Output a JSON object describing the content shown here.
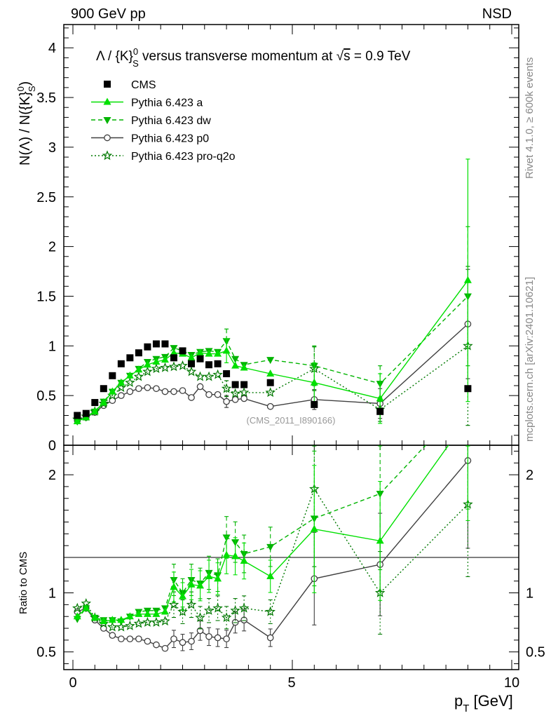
{
  "header": {
    "left": "900 GeV pp",
    "right": "NSD"
  },
  "side": {
    "rivet": "Rivet 4.1.0, ≥ 600k events",
    "mcplots": "mcplots.cern.ch [arXiv:2401.10621]"
  },
  "chart_data": {
    "type": "line",
    "title": "Λ / {K}S0 versus transverse momentum at √s = 0.9 TeV",
    "title_parts": {
      "t1": "Λ / {K}",
      "sub": "S",
      "sup": "0",
      "t2": " versus transverse momentum at ",
      "sqrt": "√",
      "s": "s",
      "t3": " = 0.9 TeV"
    },
    "analysis_id": "(CMS_2011_I890166)",
    "ylabel": "N(Λ)  /  N({K}S0)",
    "ylabel_parts": {
      "main": "N(Λ)  /  N({K}",
      "sub": "S",
      "sup": "0",
      "close": ")"
    },
    "xlabel": "pT [GeV]",
    "xlabel_parts": {
      "p": "p",
      "sub": "T",
      "unit": " [GeV]"
    },
    "ratio_ylabel": "Ratio to CMS",
    "xlim": [
      -0.3,
      10.2
    ],
    "ylim": [
      0,
      4.2
    ],
    "ratio_ylim": [
      0.35,
      2.25
    ],
    "xticks": [
      "0",
      "5",
      "10"
    ],
    "yticks": [
      "0",
      "0.5",
      "1",
      "1.5",
      "2",
      "2.5",
      "3",
      "3.5",
      "4"
    ],
    "ratio_yticks": [
      "0.5",
      "1",
      "2"
    ],
    "legend": [
      "CMS",
      "Pythia 6.423 a",
      "Pythia 6.423 dw",
      "Pythia 6.423 p0",
      "Pythia 6.423 pro-q2o"
    ],
    "legend_position": "top-left",
    "colors": {
      "cms": "#000000",
      "a": "#00e000",
      "dw": "#00b400",
      "p0": "#404040",
      "q2o": "#007800"
    },
    "series": [
      {
        "name": "CMS",
        "style": "square",
        "x": [
          0.1,
          0.3,
          0.5,
          0.7,
          0.9,
          1.1,
          1.3,
          1.5,
          1.7,
          1.9,
          2.1,
          2.3,
          2.5,
          2.7,
          2.9,
          3.1,
          3.3,
          3.5,
          3.7,
          3.9,
          4.5,
          5.5,
          7.0,
          9.0
        ],
        "values": [
          0.3,
          0.32,
          0.43,
          0.57,
          0.7,
          0.82,
          0.88,
          0.93,
          0.99,
          1.02,
          1.02,
          0.88,
          0.95,
          0.82,
          0.87,
          0.81,
          0.82,
          0.72,
          0.61,
          0.61,
          0.63,
          0.41,
          0.34,
          0.57
        ]
      },
      {
        "name": "Pythia 6.423 a",
        "style": "triangle-up",
        "line": "solid",
        "x": [
          0.1,
          0.3,
          0.5,
          0.7,
          0.9,
          1.1,
          1.3,
          1.5,
          1.7,
          1.9,
          2.1,
          2.3,
          2.5,
          2.7,
          2.9,
          3.1,
          3.3,
          3.5,
          3.7,
          3.9,
          4.5,
          5.5,
          7.0,
          9.0
        ],
        "values": [
          0.24,
          0.28,
          0.34,
          0.43,
          0.54,
          0.63,
          0.7,
          0.76,
          0.81,
          0.84,
          0.86,
          0.93,
          0.92,
          0.88,
          0.93,
          0.92,
          0.92,
          0.95,
          0.8,
          0.78,
          0.72,
          0.63,
          0.47,
          1.66
        ]
      },
      {
        "name": "Pythia 6.423 dw",
        "style": "triangle-down",
        "line": "dashed",
        "x": [
          0.1,
          0.3,
          0.5,
          0.7,
          0.9,
          1.1,
          1.3,
          1.5,
          1.7,
          1.9,
          2.1,
          2.3,
          2.5,
          2.7,
          2.9,
          3.1,
          3.3,
          3.5,
          3.7,
          3.9,
          4.5,
          5.5,
          7.0,
          9.0
        ],
        "values": [
          0.24,
          0.28,
          0.34,
          0.44,
          0.54,
          0.63,
          0.7,
          0.77,
          0.84,
          0.87,
          0.89,
          0.98,
          0.95,
          0.91,
          0.94,
          0.95,
          0.94,
          1.05,
          0.87,
          0.81,
          0.86,
          0.8,
          0.62,
          1.5
        ]
      },
      {
        "name": "Pythia 6.423 p0",
        "style": "circle-open",
        "line": "solid",
        "x": [
          0.1,
          0.3,
          0.5,
          0.7,
          0.9,
          1.1,
          1.3,
          1.5,
          1.7,
          1.9,
          2.1,
          2.3,
          2.5,
          2.7,
          2.9,
          3.1,
          3.3,
          3.5,
          3.7,
          3.9,
          4.5,
          5.5,
          7.0,
          9.0
        ],
        "values": [
          0.25,
          0.28,
          0.33,
          0.4,
          0.45,
          0.5,
          0.54,
          0.57,
          0.58,
          0.57,
          0.54,
          0.54,
          0.55,
          0.48,
          0.59,
          0.51,
          0.51,
          0.44,
          0.46,
          0.47,
          0.39,
          0.46,
          0.42,
          1.22
        ]
      },
      {
        "name": "Pythia 6.423 pro-q2o",
        "style": "star-open",
        "line": "dotted",
        "x": [
          0.1,
          0.3,
          0.5,
          0.7,
          0.9,
          1.1,
          1.3,
          1.5,
          1.7,
          1.9,
          2.1,
          2.3,
          2.5,
          2.7,
          2.9,
          3.1,
          3.3,
          3.5,
          3.7,
          3.9,
          4.5,
          5.5,
          7.0,
          9.0
        ],
        "values": [
          0.26,
          0.29,
          0.34,
          0.42,
          0.5,
          0.58,
          0.63,
          0.69,
          0.74,
          0.77,
          0.78,
          0.79,
          0.8,
          0.74,
          0.69,
          0.69,
          0.71,
          0.57,
          0.52,
          0.53,
          0.53,
          0.77,
          0.36,
          1.0
        ]
      }
    ],
    "error_bars": {
      "Pythia 6.423 a": {
        "x": [
          3.5,
          5.5,
          7.0,
          9.0
        ],
        "err": [
          0.12,
          0.2,
          0.25,
          1.22
        ]
      },
      "Pythia 6.423 dw": {
        "x": [
          3.5,
          5.5,
          7.0,
          9.0
        ],
        "err": [
          0.12,
          0.2,
          0.18,
          0.7
        ]
      },
      "Pythia 6.423 p0": {
        "x": [
          3.5,
          5.5,
          7.0,
          9.0
        ],
        "err": [
          0.06,
          0.1,
          0.15,
          0.55
        ]
      },
      "Pythia 6.423 pro-q2o": {
        "x": [
          3.5,
          5.5,
          7.0,
          9.0
        ],
        "err": [
          0.08,
          0.22,
          0.12,
          0.8
        ]
      }
    },
    "ratio_series": [
      {
        "name": "Pythia 6.423 a",
        "values": [
          0.8,
          0.87,
          0.79,
          0.76,
          0.77,
          0.77,
          0.8,
          0.82,
          0.82,
          0.82,
          0.84,
          1.05,
          0.97,
          1.07,
          1.06,
          1.14,
          1.12,
          1.32,
          1.31,
          1.27,
          1.14,
          1.54,
          1.44,
          2.48
        ]
      },
      {
        "name": "Pythia 6.423 dw",
        "values": [
          0.78,
          0.87,
          0.79,
          0.77,
          0.77,
          0.76,
          0.8,
          0.84,
          0.85,
          0.85,
          0.87,
          1.11,
          1.0,
          1.11,
          1.08,
          1.17,
          1.15,
          1.47,
          1.43,
          1.33,
          1.39,
          1.63,
          1.84,
          2.63
        ]
      },
      {
        "name": "Pythia 6.423 p0",
        "values": [
          0.84,
          0.87,
          0.77,
          0.7,
          0.64,
          0.61,
          0.61,
          0.61,
          0.59,
          0.56,
          0.53,
          0.61,
          0.58,
          0.59,
          0.68,
          0.63,
          0.62,
          0.61,
          0.75,
          0.77,
          0.62,
          1.12,
          1.24,
          2.12
        ]
      },
      {
        "name": "Pythia 6.423 pro-q2o",
        "values": [
          0.87,
          0.91,
          0.79,
          0.74,
          0.71,
          0.71,
          0.72,
          0.74,
          0.75,
          0.75,
          0.76,
          0.9,
          0.84,
          0.9,
          0.79,
          0.85,
          0.87,
          0.79,
          0.85,
          0.87,
          0.84,
          1.88,
          1.0,
          1.75
        ]
      }
    ]
  }
}
